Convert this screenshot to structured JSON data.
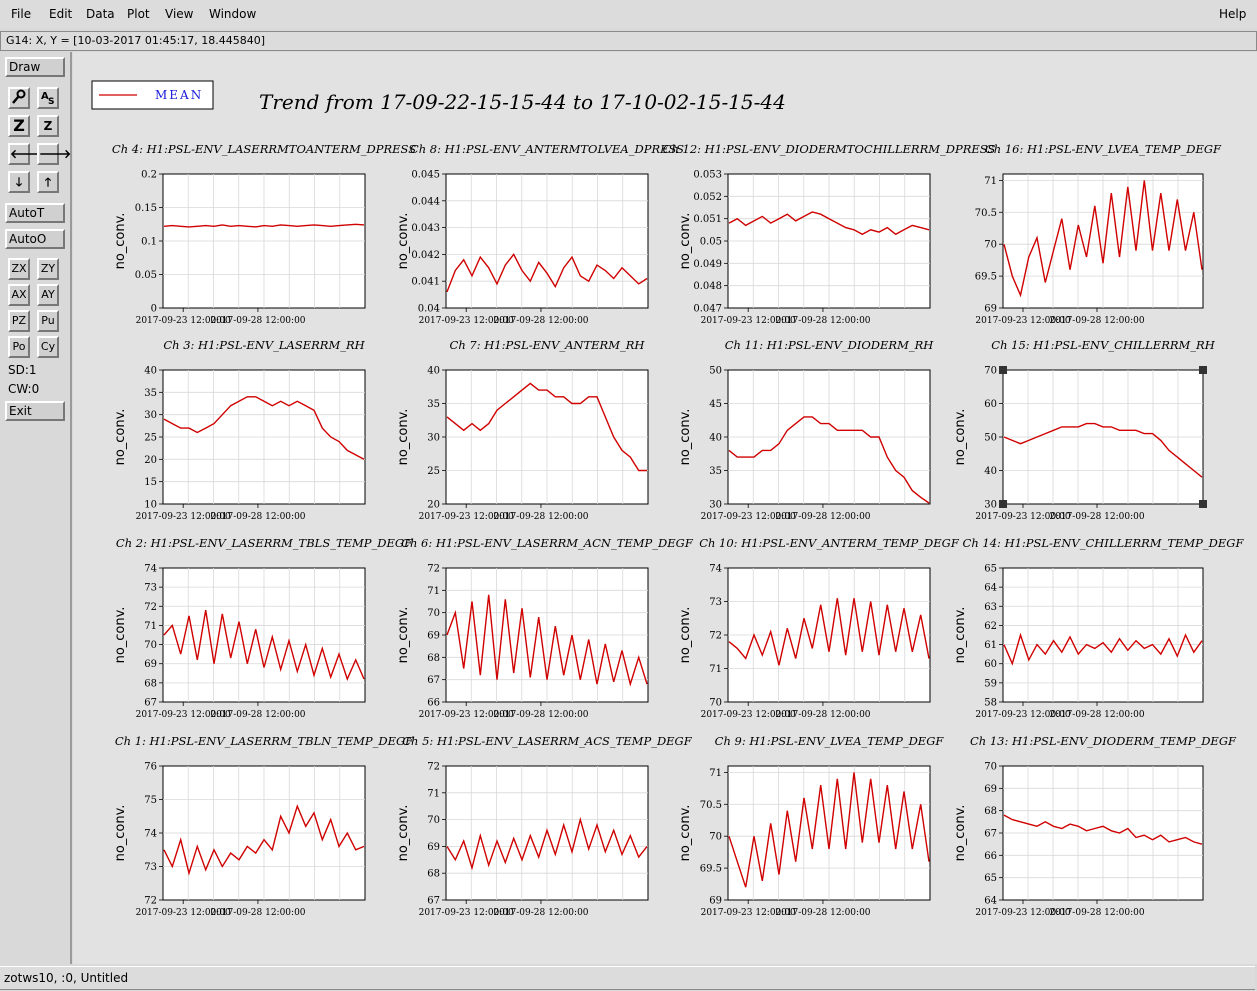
{
  "menu": {
    "file": "File",
    "edit": "Edit",
    "data": "Data",
    "plot": "Plot",
    "view": "View",
    "window": "Window",
    "help": "Help"
  },
  "coord_readout": "G14: X, Y = [10-03-2017 01:45:17, 18.445840]",
  "toolbar": {
    "draw": "Draw",
    "zoom_big": "Z",
    "zoom_small": "Z",
    "autot": "AutoT",
    "autoo": "AutoO",
    "zx": "ZX",
    "zy": "ZY",
    "ax": "AX",
    "ay": "AY",
    "pz": "PZ",
    "pu": "Pu",
    "po": "Po",
    "cy": "Cy",
    "sd": "SD:1",
    "cw": "CW:0",
    "exit": "Exit"
  },
  "legend": {
    "label": "MEAN",
    "color": "#d00000"
  },
  "main_title": "Trend from 17-09-22-15-15-44 to 17-10-02-15-15-44",
  "status": "zotws10, :0, Untitled",
  "chart_data": [
    {
      "type": "line",
      "title": "Ch 4: H1:PSL-ENV_LASERRMTOANTERM_DPRESS",
      "ylabel": "no_conv.",
      "yticks": [
        "0",
        "0.05",
        "0.1",
        "0.15",
        "0.2"
      ],
      "ylim": [
        0,
        0.2
      ],
      "xticks": [
        "2017-09-23 12:00:00",
        "2017-09-28 12:00:00"
      ],
      "series": [
        {
          "name": "MEAN",
          "values": [
            0.122,
            0.123,
            0.122,
            0.121,
            0.122,
            0.123,
            0.122,
            0.124,
            0.122,
            0.123,
            0.122,
            0.121,
            0.123,
            0.122,
            0.124,
            0.123,
            0.122,
            0.123,
            0.124,
            0.123,
            0.122,
            0.123,
            0.124,
            0.125,
            0.124
          ]
        }
      ]
    },
    {
      "type": "line",
      "title": "Ch 8: H1:PSL-ENV_ANTERMTOLVEA_DPRESS",
      "ylabel": "no_conv.",
      "yticks": [
        "0.04",
        "0.041",
        "0.042",
        "0.043",
        "0.044",
        "0.045"
      ],
      "ylim": [
        0.04,
        0.045
      ],
      "xticks": [
        "2017-09-23 12:00:00",
        "2017-09-28 12:00:00"
      ],
      "series": [
        {
          "name": "MEAN",
          "values": [
            0.0406,
            0.0414,
            0.0418,
            0.0412,
            0.0419,
            0.0415,
            0.0409,
            0.0416,
            0.042,
            0.0414,
            0.041,
            0.0417,
            0.0413,
            0.0408,
            0.0415,
            0.0419,
            0.0412,
            0.041,
            0.0416,
            0.0414,
            0.0411,
            0.0415,
            0.0412,
            0.0409,
            0.0411
          ]
        }
      ]
    },
    {
      "type": "line",
      "title": "Ch 12: H1:PSL-ENV_DIODERMTOCHILLERRM_DPRESS",
      "ylabel": "no_conv.",
      "yticks": [
        "0.047",
        "0.048",
        "0.049",
        "0.05",
        "0.051",
        "0.052",
        "0.053"
      ],
      "ylim": [
        0.047,
        0.053
      ],
      "xticks": [
        "2017-09-23 12:00:00",
        "2017-09-28 12:00:00"
      ],
      "series": [
        {
          "name": "MEAN",
          "values": [
            0.0508,
            0.051,
            0.0507,
            0.0509,
            0.0511,
            0.0508,
            0.051,
            0.0512,
            0.0509,
            0.0511,
            0.0513,
            0.0512,
            0.051,
            0.0508,
            0.0506,
            0.0505,
            0.0503,
            0.0505,
            0.0504,
            0.0506,
            0.0503,
            0.0505,
            0.0507,
            0.0506,
            0.0505
          ]
        }
      ]
    },
    {
      "type": "line",
      "title": "Ch 16: H1:PSL-ENV_LVEA_TEMP_DEGF",
      "ylabel": "",
      "yticks": [
        "69",
        "69.5",
        "70",
        "70.5",
        "71"
      ],
      "ylim": [
        69,
        71.1
      ],
      "xticks": [
        "2017-09-23 12:00:00",
        "2017-09-28 12:00:00"
      ],
      "series": [
        {
          "name": "MEAN",
          "values": [
            70.0,
            69.5,
            69.2,
            69.8,
            70.1,
            69.4,
            69.9,
            70.4,
            69.6,
            70.3,
            69.8,
            70.6,
            69.7,
            70.8,
            69.8,
            70.9,
            69.9,
            71.0,
            69.9,
            70.8,
            69.9,
            70.7,
            69.9,
            70.5,
            69.6
          ]
        }
      ]
    },
    {
      "type": "line",
      "title": "Ch 3: H1:PSL-ENV_LASERRM_RH",
      "ylabel": "no_conv.",
      "yticks": [
        "10",
        "15",
        "20",
        "25",
        "30",
        "35",
        "40"
      ],
      "ylim": [
        10,
        40
      ],
      "xticks": [
        "2017-09-23 12:00:00",
        "2017-09-28 12:00:00"
      ],
      "series": [
        {
          "name": "MEAN",
          "values": [
            29,
            28,
            27,
            27,
            26,
            27,
            28,
            30,
            32,
            33,
            34,
            34,
            33,
            32,
            33,
            32,
            33,
            32,
            31,
            27,
            25,
            24,
            22,
            21,
            20
          ]
        }
      ]
    },
    {
      "type": "line",
      "title": "Ch 7: H1:PSL-ENV_ANTERM_RH",
      "ylabel": "no_conv.",
      "yticks": [
        "20",
        "25",
        "30",
        "35",
        "40"
      ],
      "ylim": [
        20,
        40
      ],
      "xticks": [
        "2017-09-23 12:00:00",
        "2017-09-28 12:00:00"
      ],
      "series": [
        {
          "name": "MEAN",
          "values": [
            33,
            32,
            31,
            32,
            31,
            32,
            34,
            35,
            36,
            37,
            38,
            37,
            37,
            36,
            36,
            35,
            35,
            36,
            36,
            33,
            30,
            28,
            27,
            25,
            25
          ]
        }
      ]
    },
    {
      "type": "line",
      "title": "Ch 11: H1:PSL-ENV_DIODERM_RH",
      "ylabel": "no_conv.",
      "yticks": [
        "30",
        "35",
        "40",
        "45",
        "50"
      ],
      "ylim": [
        30,
        50
      ],
      "xticks": [
        "2017-09-23 12:00:00",
        "2017-09-28 12:00:00"
      ],
      "series": [
        {
          "name": "MEAN",
          "values": [
            38,
            37,
            37,
            37,
            38,
            38,
            39,
            41,
            42,
            43,
            43,
            42,
            42,
            41,
            41,
            41,
            41,
            40,
            40,
            37,
            35,
            34,
            32,
            31,
            30
          ]
        }
      ]
    },
    {
      "type": "line",
      "title": "Ch 15: H1:PSL-ENV_CHILLERRM_RH",
      "ylabel": "no_conv.",
      "yticks": [
        "30",
        "40",
        "50",
        "60",
        "70"
      ],
      "ylim": [
        30,
        70
      ],
      "xticks": [
        "2017-09-23 12:00:00",
        "2017-09-28 12:00:00"
      ],
      "series": [
        {
          "name": "MEAN",
          "values": [
            50,
            49,
            48,
            49,
            50,
            51,
            52,
            53,
            53,
            53,
            54,
            54,
            53,
            53,
            52,
            52,
            52,
            51,
            51,
            49,
            46,
            44,
            42,
            40,
            38
          ]
        }
      ]
    },
    {
      "type": "line",
      "title": "Ch 2: H1:PSL-ENV_LASERRM_TBLS_TEMP_DEGF",
      "ylabel": "no_conv.",
      "yticks": [
        "67",
        "68",
        "69",
        "70",
        "71",
        "72",
        "73",
        "74"
      ],
      "ylim": [
        67,
        74
      ],
      "xticks": [
        "2017-09-23 12:00:00",
        "2017-09-28 12:00:00"
      ],
      "series": [
        {
          "name": "MEAN",
          "values": [
            70.5,
            71,
            69.5,
            71.5,
            69.2,
            71.8,
            69.0,
            71.6,
            69.3,
            71.2,
            69.0,
            70.8,
            68.8,
            70.4,
            68.7,
            70.2,
            68.6,
            70.0,
            68.4,
            69.8,
            68.3,
            69.5,
            68.2,
            69.2,
            68.2
          ]
        }
      ]
    },
    {
      "type": "line",
      "title": "Ch 6: H1:PSL-ENV_LASERRM_ACN_TEMP_DEGF",
      "ylabel": "no_conv.",
      "yticks": [
        "66",
        "67",
        "68",
        "69",
        "70",
        "71",
        "72"
      ],
      "ylim": [
        66,
        72
      ],
      "xticks": [
        "2017-09-23 12:00:00",
        "2017-09-28 12:00:00"
      ],
      "series": [
        {
          "name": "MEAN",
          "values": [
            69,
            70,
            67.5,
            70.5,
            67.2,
            70.8,
            67.0,
            70.6,
            67.3,
            70.2,
            67.1,
            69.8,
            67.0,
            69.4,
            67.2,
            69.0,
            67.0,
            68.8,
            66.8,
            68.6,
            66.9,
            68.3,
            66.8,
            68.0,
            66.8
          ]
        }
      ]
    },
    {
      "type": "line",
      "title": "Ch 10: H1:PSL-ENV_ANTERM_TEMP_DEGF",
      "ylabel": "no_conv.",
      "yticks": [
        "70",
        "71",
        "72",
        "73",
        "74"
      ],
      "ylim": [
        70,
        74
      ],
      "xticks": [
        "2017-09-23 12:00:00",
        "2017-09-28 12:00:00"
      ],
      "series": [
        {
          "name": "MEAN",
          "values": [
            71.8,
            71.6,
            71.3,
            72.0,
            71.4,
            72.1,
            71.1,
            72.2,
            71.3,
            72.5,
            71.6,
            72.9,
            71.5,
            73.1,
            71.4,
            73.1,
            71.5,
            73.0,
            71.4,
            72.9,
            71.5,
            72.8,
            71.5,
            72.6,
            71.3
          ]
        }
      ]
    },
    {
      "type": "line",
      "title": "Ch 14: H1:PSL-ENV_CHILLERRM_TEMP_DEGF",
      "ylabel": "no_conv.",
      "yticks": [
        "58",
        "59",
        "60",
        "61",
        "62",
        "63",
        "64",
        "65"
      ],
      "ylim": [
        58,
        65
      ],
      "xticks": [
        "2017-09-23 12:00:00",
        "2017-09-28 12:00:00"
      ],
      "series": [
        {
          "name": "MEAN",
          "values": [
            61,
            60,
            61.5,
            60.2,
            61,
            60.5,
            61.2,
            60.6,
            61.4,
            60.5,
            61.0,
            60.8,
            61.1,
            60.6,
            61.3,
            60.7,
            61.2,
            60.8,
            61.0,
            60.5,
            61.3,
            60.4,
            61.5,
            60.6,
            61.2
          ]
        }
      ]
    },
    {
      "type": "line",
      "title": "Ch 1: H1:PSL-ENV_LASERRM_TBLN_TEMP_DEGF",
      "ylabel": "no_conv.",
      "yticks": [
        "72",
        "73",
        "74",
        "75",
        "76"
      ],
      "ylim": [
        72,
        76
      ],
      "xticks": [
        "2017-09-23 12:00:00",
        "2017-09-28 12:00:00"
      ],
      "series": [
        {
          "name": "MEAN",
          "values": [
            73.5,
            73.0,
            73.8,
            72.8,
            73.6,
            72.9,
            73.5,
            73.0,
            73.4,
            73.2,
            73.6,
            73.4,
            73.8,
            73.5,
            74.5,
            74.0,
            74.8,
            74.2,
            74.6,
            73.8,
            74.4,
            73.6,
            74.0,
            73.5,
            73.6
          ]
        }
      ]
    },
    {
      "type": "line",
      "title": "Ch 5: H1:PSL-ENV_LASERRM_ACS_TEMP_DEGF",
      "ylabel": "no_conv.",
      "yticks": [
        "67",
        "68",
        "69",
        "70",
        "71",
        "72"
      ],
      "ylim": [
        67,
        72
      ],
      "xticks": [
        "2017-09-23 12:00:00",
        "2017-09-28 12:00:00"
      ],
      "series": [
        {
          "name": "MEAN",
          "values": [
            69,
            68.5,
            69.2,
            68.2,
            69.4,
            68.3,
            69.2,
            68.4,
            69.3,
            68.5,
            69.4,
            68.6,
            69.6,
            68.7,
            69.8,
            68.8,
            70.0,
            68.9,
            69.8,
            68.8,
            69.6,
            68.7,
            69.4,
            68.6,
            69.0
          ]
        }
      ]
    },
    {
      "type": "line",
      "title": "Ch 9: H1:PSL-ENV_LVEA_TEMP_DEGF",
      "ylabel": "no_conv.",
      "yticks": [
        "69",
        "69.5",
        "70",
        "70.5",
        "71"
      ],
      "ylim": [
        69,
        71.1
      ],
      "xticks": [
        "2017-09-23 12:00:00",
        "2017-09-28 12:00:00"
      ],
      "series": [
        {
          "name": "MEAN",
          "values": [
            70.0,
            69.6,
            69.2,
            70.0,
            69.3,
            70.2,
            69.4,
            70.4,
            69.6,
            70.6,
            69.8,
            70.8,
            69.8,
            70.9,
            69.8,
            71.0,
            69.9,
            70.9,
            69.9,
            70.8,
            69.8,
            70.7,
            69.8,
            70.5,
            69.6
          ]
        }
      ]
    },
    {
      "type": "line",
      "title": "Ch 13: H1:PSL-ENV_DIODERM_TEMP_DEGF",
      "ylabel": "no_conv.",
      "yticks": [
        "64",
        "65",
        "66",
        "67",
        "68",
        "69",
        "70"
      ],
      "ylim": [
        64,
        70
      ],
      "xticks": [
        "2017-09-23 12:00:00",
        "2017-09-28 12:00:00"
      ],
      "series": [
        {
          "name": "MEAN",
          "values": [
            67.8,
            67.6,
            67.5,
            67.4,
            67.3,
            67.5,
            67.3,
            67.2,
            67.4,
            67.3,
            67.1,
            67.2,
            67.3,
            67.1,
            67.0,
            67.2,
            66.8,
            66.9,
            66.7,
            66.9,
            66.6,
            66.7,
            66.8,
            66.6,
            66.5
          ]
        }
      ]
    }
  ]
}
